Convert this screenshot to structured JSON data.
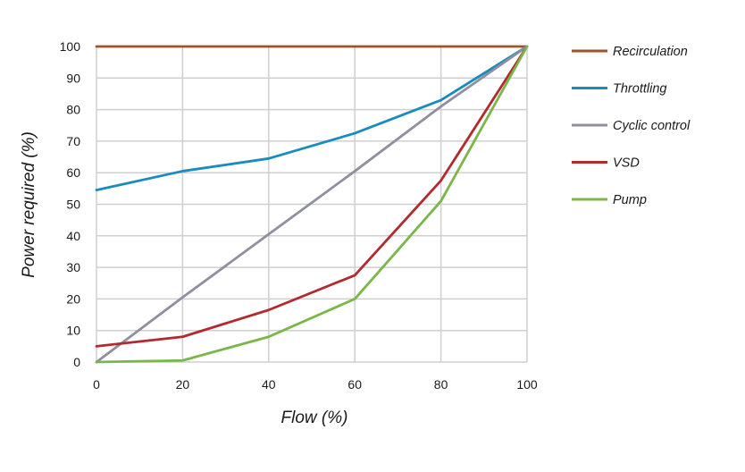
{
  "chart_data": {
    "type": "line",
    "title": "",
    "xlabel": "Flow (%)",
    "ylabel": "Power required (%)",
    "xlim": [
      0,
      100
    ],
    "ylim": [
      0,
      100
    ],
    "x_ticks": [
      0,
      20,
      40,
      60,
      80,
      100
    ],
    "y_ticks": [
      0,
      10,
      20,
      30,
      40,
      50,
      60,
      70,
      80,
      90,
      100
    ],
    "grid": true,
    "legend_position": "right",
    "x": [
      0,
      20,
      40,
      60,
      80,
      100
    ],
    "series": [
      {
        "name": "Recirculation",
        "color": "#a0522d",
        "values": [
          100,
          100,
          100,
          100,
          100,
          100
        ]
      },
      {
        "name": "Throttling",
        "color": "#1a8bbf",
        "values": [
          54.5,
          60.5,
          64.5,
          72.5,
          83,
          100
        ]
      },
      {
        "name": "Cyclic control",
        "color": "#8f8f9f",
        "values": [
          0,
          20.5,
          40.5,
          60.5,
          81,
          100
        ]
      },
      {
        "name": "VSD",
        "color": "#b22a2e",
        "values": [
          5,
          8,
          16.5,
          27.5,
          57.5,
          100
        ]
      },
      {
        "name": "Pump",
        "color": "#7ab648",
        "values": [
          0,
          0.5,
          8,
          20,
          51,
          100
        ]
      }
    ]
  }
}
